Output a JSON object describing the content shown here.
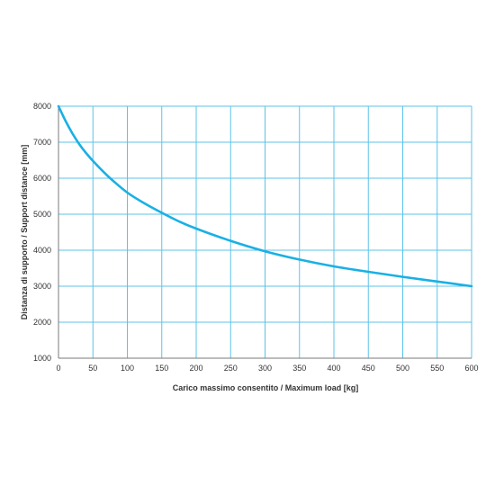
{
  "chart_data": {
    "type": "line",
    "title": "",
    "xlabel": "Carico massimo consentito / Maximum load [kg]",
    "ylabel": "Distanza di supporto / Support distance [mm]",
    "xlim": [
      0,
      600
    ],
    "ylim": [
      1000,
      8000
    ],
    "xticks": [
      0,
      50,
      100,
      150,
      200,
      250,
      300,
      350,
      400,
      450,
      500,
      550,
      600
    ],
    "yticks": [
      1000,
      2000,
      3000,
      4000,
      5000,
      6000,
      7000,
      8000
    ],
    "grid": true,
    "legend": "none",
    "colors": {
      "series": "#1ab0e4",
      "grid": "#5cc3ea",
      "axis": "#7a7a7a"
    },
    "series": [
      {
        "x": [
          0,
          10,
          20,
          30,
          40,
          50,
          60,
          75,
          100,
          125,
          150,
          175,
          200,
          250,
          300,
          350,
          400,
          450,
          500,
          550,
          600
        ],
        "y": [
          8000,
          7600,
          7250,
          6950,
          6700,
          6480,
          6280,
          6000,
          5600,
          5300,
          5040,
          4800,
          4600,
          4260,
          3970,
          3740,
          3550,
          3400,
          3260,
          3130,
          3000
        ]
      }
    ]
  }
}
